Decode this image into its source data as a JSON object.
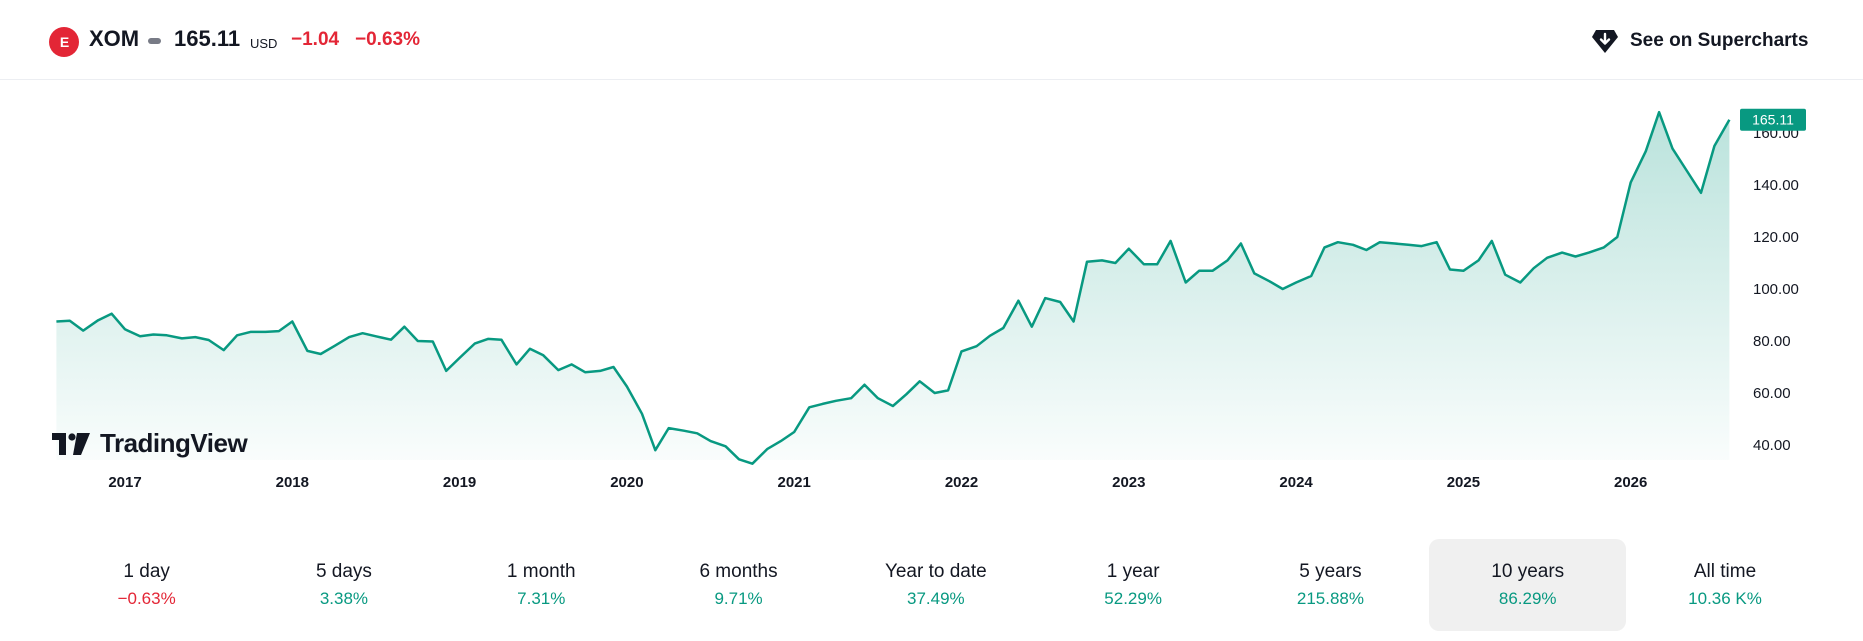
{
  "header": {
    "exchange_logo": "E",
    "symbol": "XOM",
    "price": "165.11",
    "currency": "USD",
    "change": "−1.04",
    "change_pct": "−0.63%",
    "supercharts_label": "See on Supercharts",
    "supercharts_icon": "diamond-arrow-icon"
  },
  "brand": {
    "logo_text": "TradingView"
  },
  "colors": {
    "line": "#089981",
    "negative": "#e32636",
    "positive": "#089981",
    "price_tag": "#089981"
  },
  "chart_data": {
    "type": "area",
    "title": "",
    "xlabel": "",
    "ylabel": "",
    "ylim": [
      33,
      172
    ],
    "y_ticks": [
      "160.00",
      "140.00",
      "120.00",
      "100.00",
      "80.00",
      "60.00",
      "40.00"
    ],
    "x_ticks": [
      {
        "label": "2017",
        "x": 2017.0
      },
      {
        "label": "2018",
        "x": 2018.0
      },
      {
        "label": "2019",
        "x": 2019.0
      },
      {
        "label": "2020",
        "x": 2020.0
      },
      {
        "label": "2021",
        "x": 2021.0
      },
      {
        "label": "2022",
        "x": 2022.0
      },
      {
        "label": "2023",
        "x": 2023.0
      },
      {
        "label": "2024",
        "x": 2024.0
      },
      {
        "label": "2025",
        "x": 2025.0
      },
      {
        "label": "2026",
        "x": 2026.0
      }
    ],
    "last_price_label": "165.11",
    "series": [
      {
        "x": [
          2016.59,
          2016.67,
          2016.75,
          2016.84,
          2016.92,
          2017.0,
          2017.09,
          2017.17,
          2017.25,
          2017.34,
          2017.42,
          2017.5,
          2017.59,
          2017.67,
          2017.75,
          2017.84,
          2017.92,
          2018.0,
          2018.09,
          2018.17,
          2018.25,
          2018.34,
          2018.42,
          2018.5,
          2018.59,
          2018.67,
          2018.75,
          2018.84,
          2018.92,
          2019.0,
          2019.09,
          2019.17,
          2019.25,
          2019.34,
          2019.42,
          2019.5,
          2019.59,
          2019.67,
          2019.75,
          2019.84,
          2019.92,
          2020.0,
          2020.09,
          2020.17,
          2020.25,
          2020.34,
          2020.42,
          2020.5,
          2020.59,
          2020.67,
          2020.75,
          2020.84,
          2020.92,
          2021.0,
          2021.09,
          2021.17,
          2021.25,
          2021.34,
          2021.42,
          2021.5,
          2021.59,
          2021.67,
          2021.75,
          2021.84,
          2021.92,
          2022.0,
          2022.09,
          2022.17,
          2022.25,
          2022.34,
          2022.42,
          2022.5,
          2022.59,
          2022.67,
          2022.75,
          2022.84,
          2022.92,
          2023.0,
          2023.09,
          2023.17,
          2023.25,
          2023.34,
          2023.42,
          2023.5,
          2023.59,
          2023.67,
          2023.75,
          2023.84,
          2023.92,
          2024.0,
          2024.09,
          2024.17,
          2024.25,
          2024.34,
          2024.42,
          2024.5,
          2024.59,
          2024.67,
          2024.75,
          2024.84,
          2024.92,
          2025.0,
          2025.09,
          2025.17,
          2025.25,
          2025.34,
          2025.42,
          2025.5,
          2025.59,
          2025.67,
          2025.75,
          2025.84,
          2025.92,
          2026.0,
          2026.09,
          2026.17,
          2026.25,
          2026.34,
          2026.42,
          2026.5,
          2026.59
        ],
        "y": [
          87.5,
          87.8,
          84,
          88,
          90.5,
          84.5,
          81.8,
          82.5,
          82.2,
          81,
          81.5,
          80.4,
          76.5,
          82.2,
          83.5,
          83.5,
          83.8,
          87.5,
          76.2,
          75,
          78,
          81.5,
          83,
          81.8,
          80.5,
          85.5,
          80,
          79.8,
          68.5,
          73.5,
          79,
          80.8,
          80.5,
          71,
          77,
          74.5,
          68.8,
          71,
          68,
          68.5,
          70,
          62.5,
          52,
          38,
          46.5,
          45.5,
          44.5,
          41.5,
          39.5,
          34.5,
          32.8,
          38.5,
          41.5,
          45,
          54.5,
          55.8,
          57,
          58,
          63.2,
          58,
          55,
          59.5,
          64.5,
          60,
          61,
          76,
          78,
          82,
          85,
          95.5,
          85.5,
          96.5,
          95,
          87.5,
          110.5,
          111,
          110,
          115.5,
          109.5,
          109.5,
          118.5,
          102.5,
          107,
          107,
          111,
          117.5,
          106,
          103,
          100,
          102.5,
          105,
          116,
          118,
          117,
          115,
          118,
          117.5,
          117,
          116.5,
          118,
          107.5,
          107,
          111,
          118.5,
          105.5,
          102.5,
          108,
          112,
          114,
          112.5,
          114,
          116,
          120,
          141,
          153,
          168,
          154,
          145,
          137,
          155,
          165.11
        ]
      }
    ]
  },
  "periods": [
    {
      "label": "1 day",
      "value": "−0.63%",
      "sign": "neg",
      "active": false
    },
    {
      "label": "5 days",
      "value": "3.38%",
      "sign": "pos",
      "active": false
    },
    {
      "label": "1 month",
      "value": "7.31%",
      "sign": "pos",
      "active": false
    },
    {
      "label": "6 months",
      "value": "9.71%",
      "sign": "pos",
      "active": false
    },
    {
      "label": "Year to date",
      "value": "37.49%",
      "sign": "pos",
      "active": false
    },
    {
      "label": "1 year",
      "value": "52.29%",
      "sign": "pos",
      "active": false
    },
    {
      "label": "5 years",
      "value": "215.88%",
      "sign": "pos",
      "active": false
    },
    {
      "label": "10 years",
      "value": "86.29%",
      "sign": "pos",
      "active": true
    },
    {
      "label": "All time",
      "value": "10.36 K%",
      "sign": "pos",
      "active": false
    }
  ]
}
